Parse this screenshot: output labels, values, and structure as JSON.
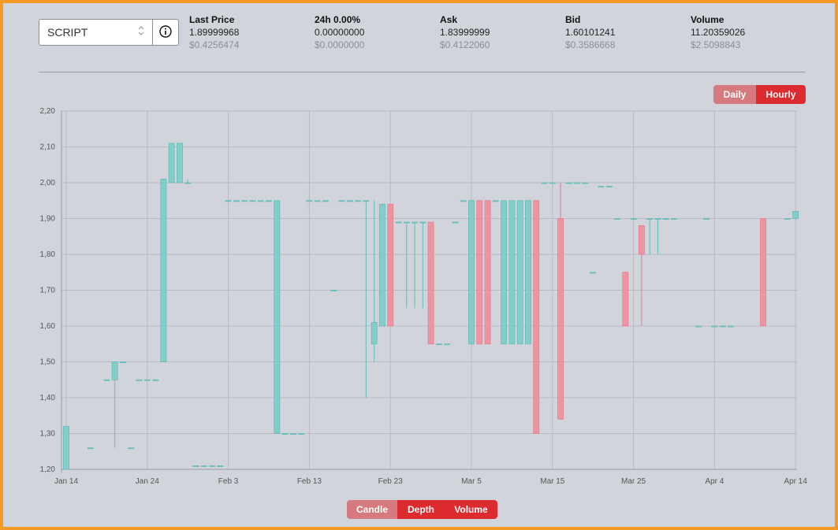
{
  "market": {
    "selected": "SCRIPT"
  },
  "stats": [
    {
      "label": "Last Price",
      "value": "1.89999968",
      "usd": "$0.4256474"
    },
    {
      "label": "24h 0.00%",
      "value": "0.00000000",
      "usd": "$0.0000000"
    },
    {
      "label": "Ask",
      "value": "1.83999999",
      "usd": "$0.4122060"
    },
    {
      "label": "Bid",
      "value": "1.60101241",
      "usd": "$0.3586668"
    },
    {
      "label": "Volume",
      "value": "11.20359026",
      "usd": "$2.5098843"
    }
  ],
  "interval_toggle": {
    "daily": "Daily",
    "hourly": "Hourly",
    "selected": "Hourly"
  },
  "view_toggle": {
    "candle": "Candle",
    "depth": "Depth",
    "volume": "Volume",
    "selected_note": "Candle"
  },
  "colors": {
    "up": "#7ecdc9",
    "up_stroke": "#5fbcb7",
    "down": "#f0909f",
    "down_stroke": "#e77b8b",
    "frame": "#f39a26",
    "accent": "#dd2a2e"
  },
  "chart_data": {
    "type": "candlestick",
    "title": "",
    "xlabel": "",
    "ylabel": "",
    "ylim": [
      1.2,
      2.2
    ],
    "y_ticks": [
      "1,20",
      "1,30",
      "1,40",
      "1,50",
      "1,60",
      "1,70",
      "1,80",
      "1,90",
      "2,00",
      "2,10",
      "2,20"
    ],
    "x_ticks": [
      "Jan 14",
      "Jan 24",
      "Feb 3",
      "Feb 13",
      "Feb 23",
      "Mar 5",
      "Mar 15",
      "Mar 25",
      "Apr 4",
      "Apr 14"
    ],
    "x_range_days": [
      0,
      90.8
    ],
    "candles": [
      {
        "day": 0.0,
        "open": 1.2,
        "close": 1.32,
        "high": 1.32,
        "low": 1.2
      },
      {
        "day": 3.0,
        "open": 1.26,
        "close": 1.26,
        "high": 1.26,
        "low": 1.26
      },
      {
        "day": 5.0,
        "open": 1.45,
        "close": 1.45,
        "high": 1.45,
        "low": 1.45
      },
      {
        "day": 6.0,
        "open": 1.45,
        "close": 1.5,
        "high": 1.5,
        "low": 1.26
      },
      {
        "day": 7.0,
        "open": 1.5,
        "close": 1.5,
        "high": 1.5,
        "low": 1.5
      },
      {
        "day": 8.0,
        "open": 1.26,
        "close": 1.26,
        "high": 1.26,
        "low": 1.26
      },
      {
        "day": 9.0,
        "open": 1.45,
        "close": 1.45,
        "high": 1.45,
        "low": 1.45
      },
      {
        "day": 10.0,
        "open": 1.45,
        "close": 1.45,
        "high": 1.45,
        "low": 1.45
      },
      {
        "day": 11.0,
        "open": 1.45,
        "close": 1.45,
        "high": 1.45,
        "low": 1.45
      },
      {
        "day": 12.0,
        "open": 1.5,
        "close": 2.01,
        "high": 2.01,
        "low": 1.5
      },
      {
        "day": 13.0,
        "open": 2.0,
        "close": 2.11,
        "high": 2.11,
        "low": 2.0
      },
      {
        "day": 14.0,
        "open": 2.0,
        "close": 2.11,
        "high": 2.11,
        "low": 2.0
      },
      {
        "day": 15.0,
        "open": 2.0,
        "close": 2.0,
        "high": 2.01,
        "low": 2.0
      },
      {
        "day": 16.0,
        "open": 1.21,
        "close": 1.21,
        "high": 1.21,
        "low": 1.21
      },
      {
        "day": 17.0,
        "open": 1.21,
        "close": 1.21,
        "high": 1.21,
        "low": 1.21
      },
      {
        "day": 18.0,
        "open": 1.21,
        "close": 1.21,
        "high": 1.21,
        "low": 1.21
      },
      {
        "day": 19.0,
        "open": 1.21,
        "close": 1.21,
        "high": 1.21,
        "low": 1.21
      },
      {
        "day": 20.0,
        "open": 1.95,
        "close": 1.95,
        "high": 1.95,
        "low": 1.95
      },
      {
        "day": 21.0,
        "open": 1.95,
        "close": 1.95,
        "high": 1.95,
        "low": 1.95
      },
      {
        "day": 22.0,
        "open": 1.95,
        "close": 1.95,
        "high": 1.95,
        "low": 1.95
      },
      {
        "day": 23.0,
        "open": 1.95,
        "close": 1.95,
        "high": 1.95,
        "low": 1.95
      },
      {
        "day": 24.0,
        "open": 1.95,
        "close": 1.95,
        "high": 1.95,
        "low": 1.95
      },
      {
        "day": 25.0,
        "open": 1.95,
        "close": 1.95,
        "high": 1.95,
        "low": 1.95
      },
      {
        "day": 26.0,
        "open": 1.3,
        "close": 1.95,
        "high": 1.95,
        "low": 1.3
      },
      {
        "day": 27.0,
        "open": 1.3,
        "close": 1.3,
        "high": 1.3,
        "low": 1.3
      },
      {
        "day": 28.0,
        "open": 1.3,
        "close": 1.3,
        "high": 1.3,
        "low": 1.3
      },
      {
        "day": 29.0,
        "open": 1.3,
        "close": 1.3,
        "high": 1.3,
        "low": 1.3
      },
      {
        "day": 30.0,
        "open": 1.95,
        "close": 1.95,
        "high": 1.95,
        "low": 1.95
      },
      {
        "day": 31.0,
        "open": 1.95,
        "close": 1.95,
        "high": 1.95,
        "low": 1.95
      },
      {
        "day": 32.0,
        "open": 1.95,
        "close": 1.95,
        "high": 1.95,
        "low": 1.95
      },
      {
        "day": 33.0,
        "open": 1.7,
        "close": 1.7,
        "high": 1.7,
        "low": 1.7
      },
      {
        "day": 34.0,
        "open": 1.95,
        "close": 1.95,
        "high": 1.95,
        "low": 1.95
      },
      {
        "day": 35.0,
        "open": 1.95,
        "close": 1.95,
        "high": 1.95,
        "low": 1.95
      },
      {
        "day": 36.0,
        "open": 1.95,
        "close": 1.95,
        "high": 1.95,
        "low": 1.95
      },
      {
        "day": 37.0,
        "open": 1.95,
        "close": 1.95,
        "high": 1.95,
        "low": 1.4
      },
      {
        "day": 38.0,
        "open": 1.55,
        "close": 1.61,
        "high": 1.95,
        "low": 1.5
      },
      {
        "day": 39.0,
        "open": 1.6,
        "close": 1.94,
        "high": 1.94,
        "low": 1.6
      },
      {
        "day": 40.0,
        "open": 1.94,
        "close": 1.6,
        "high": 1.94,
        "low": 1.6
      },
      {
        "day": 41.0,
        "open": 1.89,
        "close": 1.89,
        "high": 1.89,
        "low": 1.89
      },
      {
        "day": 42.0,
        "open": 1.89,
        "close": 1.89,
        "high": 1.89,
        "low": 1.65
      },
      {
        "day": 43.0,
        "open": 1.89,
        "close": 1.89,
        "high": 1.89,
        "low": 1.65
      },
      {
        "day": 44.0,
        "open": 1.89,
        "close": 1.89,
        "high": 1.89,
        "low": 1.65
      },
      {
        "day": 45.0,
        "open": 1.89,
        "close": 1.55,
        "high": 1.89,
        "low": 1.55
      },
      {
        "day": 46.0,
        "open": 1.55,
        "close": 1.55,
        "high": 1.55,
        "low": 1.55
      },
      {
        "day": 47.0,
        "open": 1.55,
        "close": 1.55,
        "high": 1.55,
        "low": 1.55
      },
      {
        "day": 48.0,
        "open": 1.89,
        "close": 1.89,
        "high": 1.89,
        "low": 1.89
      },
      {
        "day": 49.0,
        "open": 1.95,
        "close": 1.95,
        "high": 1.95,
        "low": 1.95
      },
      {
        "day": 50.0,
        "open": 1.55,
        "close": 1.95,
        "high": 1.95,
        "low": 1.55
      },
      {
        "day": 51.0,
        "open": 1.95,
        "close": 1.55,
        "high": 1.95,
        "low": 1.55
      },
      {
        "day": 52.0,
        "open": 1.95,
        "close": 1.55,
        "high": 1.95,
        "low": 1.55
      },
      {
        "day": 53.0,
        "open": 1.95,
        "close": 1.95,
        "high": 1.95,
        "low": 1.95
      },
      {
        "day": 54.0,
        "open": 1.55,
        "close": 1.95,
        "high": 1.95,
        "low": 1.55
      },
      {
        "day": 55.0,
        "open": 1.55,
        "close": 1.95,
        "high": 1.95,
        "low": 1.55
      },
      {
        "day": 56.0,
        "open": 1.55,
        "close": 1.95,
        "high": 1.95,
        "low": 1.55
      },
      {
        "day": 57.0,
        "open": 1.55,
        "close": 1.95,
        "high": 1.95,
        "low": 1.55
      },
      {
        "day": 58.0,
        "open": 1.95,
        "close": 1.3,
        "high": 1.95,
        "low": 1.3
      },
      {
        "day": 59.0,
        "open": 2.0,
        "close": 2.0,
        "high": 2.0,
        "low": 2.0
      },
      {
        "day": 60.0,
        "open": 2.0,
        "close": 2.0,
        "high": 2.0,
        "low": 2.0
      },
      {
        "day": 61.0,
        "open": 1.9,
        "close": 1.34,
        "high": 2.0,
        "low": 1.34
      },
      {
        "day": 62.0,
        "open": 2.0,
        "close": 2.0,
        "high": 2.0,
        "low": 2.0
      },
      {
        "day": 63.0,
        "open": 2.0,
        "close": 2.0,
        "high": 2.0,
        "low": 2.0
      },
      {
        "day": 64.0,
        "open": 2.0,
        "close": 2.0,
        "high": 2.0,
        "low": 2.0
      },
      {
        "day": 65.0,
        "open": 1.75,
        "close": 1.75,
        "high": 1.75,
        "low": 1.75
      },
      {
        "day": 66.0,
        "open": 1.99,
        "close": 1.99,
        "high": 1.99,
        "low": 1.99
      },
      {
        "day": 67.0,
        "open": 1.99,
        "close": 1.99,
        "high": 1.99,
        "low": 1.99
      },
      {
        "day": 68.0,
        "open": 1.9,
        "close": 1.9,
        "high": 1.9,
        "low": 1.9
      },
      {
        "day": 69.0,
        "open": 1.75,
        "close": 1.6,
        "high": 1.75,
        "low": 1.6
      },
      {
        "day": 70.0,
        "open": 1.9,
        "close": 1.9,
        "high": 1.9,
        "low": 1.9
      },
      {
        "day": 71.0,
        "open": 1.88,
        "close": 1.8,
        "high": 1.88,
        "low": 1.6
      },
      {
        "day": 72.0,
        "open": 1.9,
        "close": 1.9,
        "high": 1.9,
        "low": 1.8
      },
      {
        "day": 73.0,
        "open": 1.9,
        "close": 1.9,
        "high": 1.9,
        "low": 1.8
      },
      {
        "day": 74.0,
        "open": 1.9,
        "close": 1.9,
        "high": 1.9,
        "low": 1.9
      },
      {
        "day": 75.0,
        "open": 1.9,
        "close": 1.9,
        "high": 1.9,
        "low": 1.9
      },
      {
        "day": 78.0,
        "open": 1.6,
        "close": 1.6,
        "high": 1.6,
        "low": 1.6
      },
      {
        "day": 79.0,
        "open": 1.9,
        "close": 1.9,
        "high": 1.9,
        "low": 1.9
      },
      {
        "day": 80.0,
        "open": 1.6,
        "close": 1.6,
        "high": 1.6,
        "low": 1.6
      },
      {
        "day": 81.0,
        "open": 1.6,
        "close": 1.6,
        "high": 1.6,
        "low": 1.6
      },
      {
        "day": 82.0,
        "open": 1.6,
        "close": 1.6,
        "high": 1.6,
        "low": 1.6
      },
      {
        "day": 86.0,
        "open": 1.9,
        "close": 1.6,
        "high": 1.9,
        "low": 1.6
      },
      {
        "day": 89.0,
        "open": 1.9,
        "close": 1.9,
        "high": 1.9,
        "low": 1.9
      },
      {
        "day": 90.0,
        "open": 1.9,
        "close": 1.92,
        "high": 1.92,
        "low": 1.9
      }
    ]
  }
}
